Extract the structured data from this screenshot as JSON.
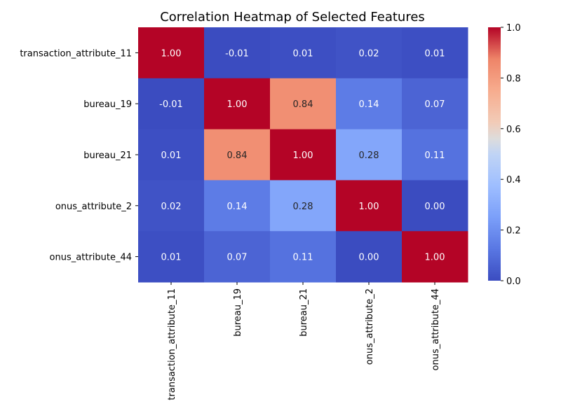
{
  "chart_data": {
    "type": "heatmap",
    "title": "Correlation Heatmap of Selected Features",
    "xlabel": "",
    "ylabel": "",
    "rows": [
      "transaction_attribute_11",
      "bureau_19",
      "bureau_21",
      "onus_attribute_2",
      "onus_attribute_44"
    ],
    "columns": [
      "transaction_attribute_11",
      "bureau_19",
      "bureau_21",
      "onus_attribute_2",
      "onus_attribute_44"
    ],
    "values": [
      [
        1.0,
        -0.01,
        0.01,
        0.02,
        0.01
      ],
      [
        -0.01,
        1.0,
        0.84,
        0.14,
        0.07
      ],
      [
        0.01,
        0.84,
        1.0,
        0.28,
        0.11
      ],
      [
        0.02,
        0.14,
        0.28,
        1.0,
        0.0
      ],
      [
        0.01,
        0.07,
        0.11,
        0.0,
        1.0
      ]
    ],
    "value_format": "2 decimals",
    "colormap": "coolwarm",
    "color_range": [
      0.0,
      1.0
    ],
    "colorbar_ticks": [
      0.0,
      0.2,
      0.4,
      0.6,
      0.8,
      1.0
    ],
    "colorbar_tick_labels": [
      "0.0",
      "0.2",
      "0.4",
      "0.6",
      "0.8",
      "1.0"
    ],
    "grid": false,
    "legend": "colorbar right"
  }
}
